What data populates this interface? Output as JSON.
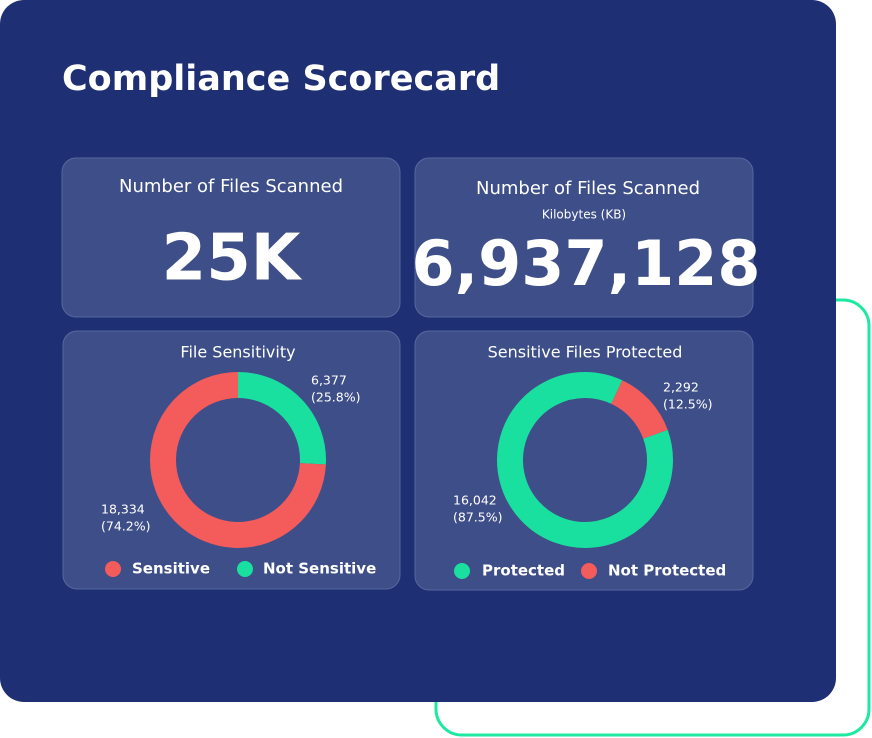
{
  "header": {
    "title": "Compliance Scorecard"
  },
  "kpis": [
    {
      "title": "Number of Files Scanned",
      "value": "25K"
    },
    {
      "title": "Number of Files Scanned",
      "subtitle": "Kilobytes (KB)",
      "value": "6,937,128"
    }
  ],
  "chart_data": [
    {
      "type": "pie",
      "title": "File Sensitivity",
      "categories": [
        "Sensitive",
        "Not Sensitive"
      ],
      "values": [
        18334,
        6377
      ],
      "value_labels": [
        "18,334",
        "6,377"
      ],
      "percent_labels": [
        "(74.2%)",
        "(25.8%)"
      ],
      "colors": [
        "#f45b5b",
        "#19e09e"
      ]
    },
    {
      "type": "pie",
      "title": "Sensitive Files Protected",
      "categories": [
        "Protected",
        "Not Protected"
      ],
      "values": [
        16042,
        2292
      ],
      "value_labels": [
        "16,042",
        "2,292"
      ],
      "percent_labels": [
        "(87.5%)",
        "(12.5%)"
      ],
      "colors": [
        "#19e09e",
        "#f45b5b"
      ]
    }
  ]
}
